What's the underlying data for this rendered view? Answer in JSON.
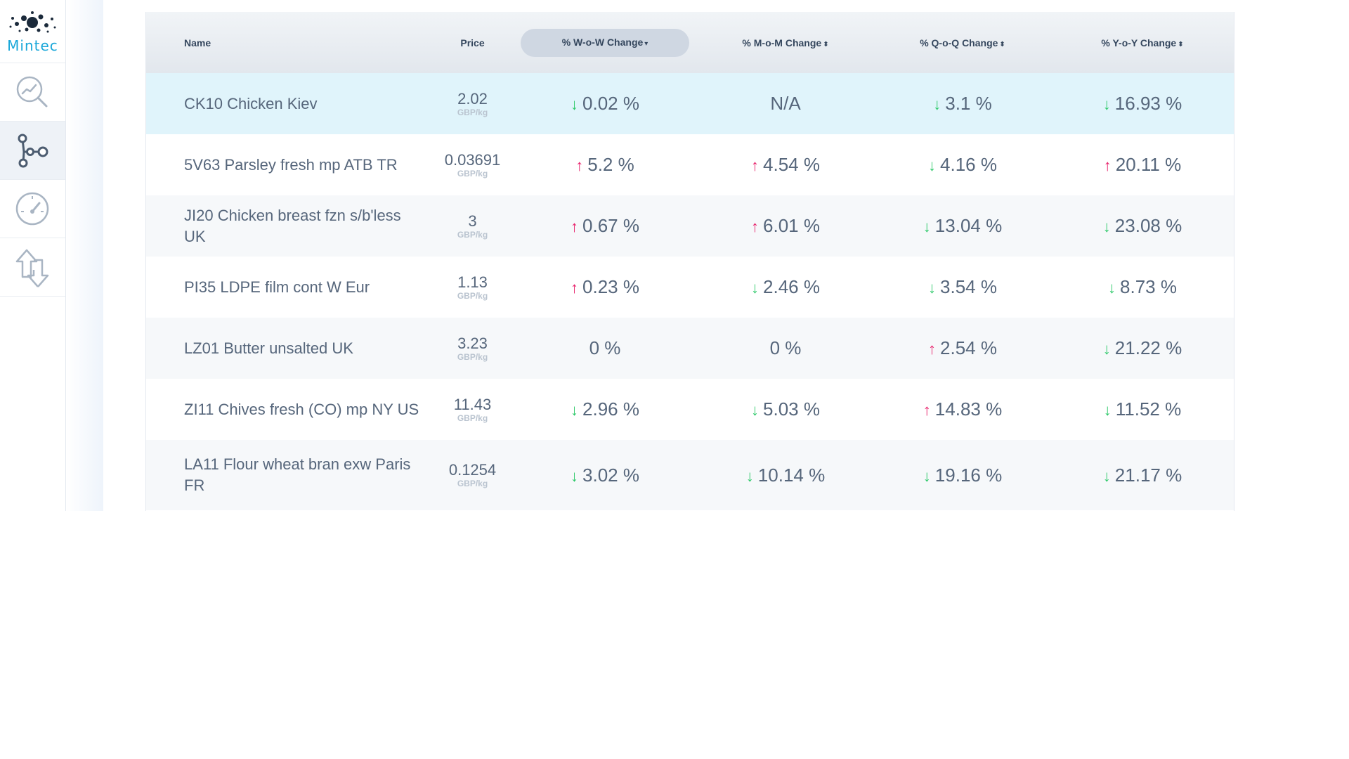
{
  "app": {
    "logo_text": "Mintec",
    "nav": [
      {
        "icon": "chart-search-icon",
        "active": false
      },
      {
        "icon": "network-nodes-icon",
        "active": true
      },
      {
        "icon": "gauge-icon",
        "active": false
      },
      {
        "icon": "swap-arrows-icon",
        "active": false
      }
    ]
  },
  "colors": {
    "accent": "#19a7d9",
    "up": "#e8246d",
    "down": "#2ec96a",
    "selected_row": "#e0f4fb"
  },
  "table": {
    "columns": {
      "name": "Name",
      "price": "Price",
      "wow": "% W-o-W Change",
      "mom": "% M-o-M Change",
      "qoq": "% Q-o-Q Change",
      "yoy": "% Y-o-Y Change"
    },
    "sorted_column": "wow",
    "sort_indicators": {
      "active": "▾",
      "inactive": "⬍"
    },
    "arrows": {
      "up": "↑",
      "down": "↓",
      "none": ""
    },
    "rows": [
      {
        "name": "CK10 Chicken Kiev",
        "price": "2.02",
        "unit": "GBP/kg",
        "wow": {
          "value": "0.02 %",
          "dir": "down"
        },
        "mom": {
          "value": "N/A",
          "dir": "none"
        },
        "qoq": {
          "value": "3.1 %",
          "dir": "down"
        },
        "yoy": {
          "value": "16.93 %",
          "dir": "down"
        }
      },
      {
        "name": "5V63 Parsley fresh mp ATB TR",
        "price": "0.03691",
        "unit": "GBP/kg",
        "wow": {
          "value": "5.2 %",
          "dir": "up"
        },
        "mom": {
          "value": "4.54 %",
          "dir": "up"
        },
        "qoq": {
          "value": "4.16 %",
          "dir": "down"
        },
        "yoy": {
          "value": "20.11 %",
          "dir": "up"
        }
      },
      {
        "name": "JI20 Chicken breast fzn s/b'less UK",
        "price": "3",
        "unit": "GBP/kg",
        "wow": {
          "value": "0.67 %",
          "dir": "up"
        },
        "mom": {
          "value": "6.01 %",
          "dir": "up"
        },
        "qoq": {
          "value": "13.04 %",
          "dir": "down"
        },
        "yoy": {
          "value": "23.08 %",
          "dir": "down"
        }
      },
      {
        "name": "PI35 LDPE film cont W Eur",
        "price": "1.13",
        "unit": "GBP/kg",
        "wow": {
          "value": "0.23 %",
          "dir": "up"
        },
        "mom": {
          "value": "2.46 %",
          "dir": "down"
        },
        "qoq": {
          "value": "3.54 %",
          "dir": "down"
        },
        "yoy": {
          "value": "8.73 %",
          "dir": "down"
        }
      },
      {
        "name": "LZ01 Butter unsalted UK",
        "price": "3.23",
        "unit": "GBP/kg",
        "wow": {
          "value": "0 %",
          "dir": "none"
        },
        "mom": {
          "value": "0 %",
          "dir": "none"
        },
        "qoq": {
          "value": "2.54 %",
          "dir": "up"
        },
        "yoy": {
          "value": "21.22 %",
          "dir": "down"
        }
      },
      {
        "name": "ZI11 Chives fresh (CO) mp NY US",
        "price": "11.43",
        "unit": "GBP/kg",
        "wow": {
          "value": "2.96 %",
          "dir": "down"
        },
        "mom": {
          "value": "5.03 %",
          "dir": "down"
        },
        "qoq": {
          "value": "14.83 %",
          "dir": "up"
        },
        "yoy": {
          "value": "11.52 %",
          "dir": "down"
        }
      },
      {
        "name": "LA11 Flour wheat bran exw Paris FR",
        "price": "0.1254",
        "unit": "GBP/kg",
        "wow": {
          "value": "3.02 %",
          "dir": "down"
        },
        "mom": {
          "value": "10.14 %",
          "dir": "down"
        },
        "qoq": {
          "value": "19.16 %",
          "dir": "down"
        },
        "yoy": {
          "value": "21.17 %",
          "dir": "down"
        }
      }
    ]
  }
}
